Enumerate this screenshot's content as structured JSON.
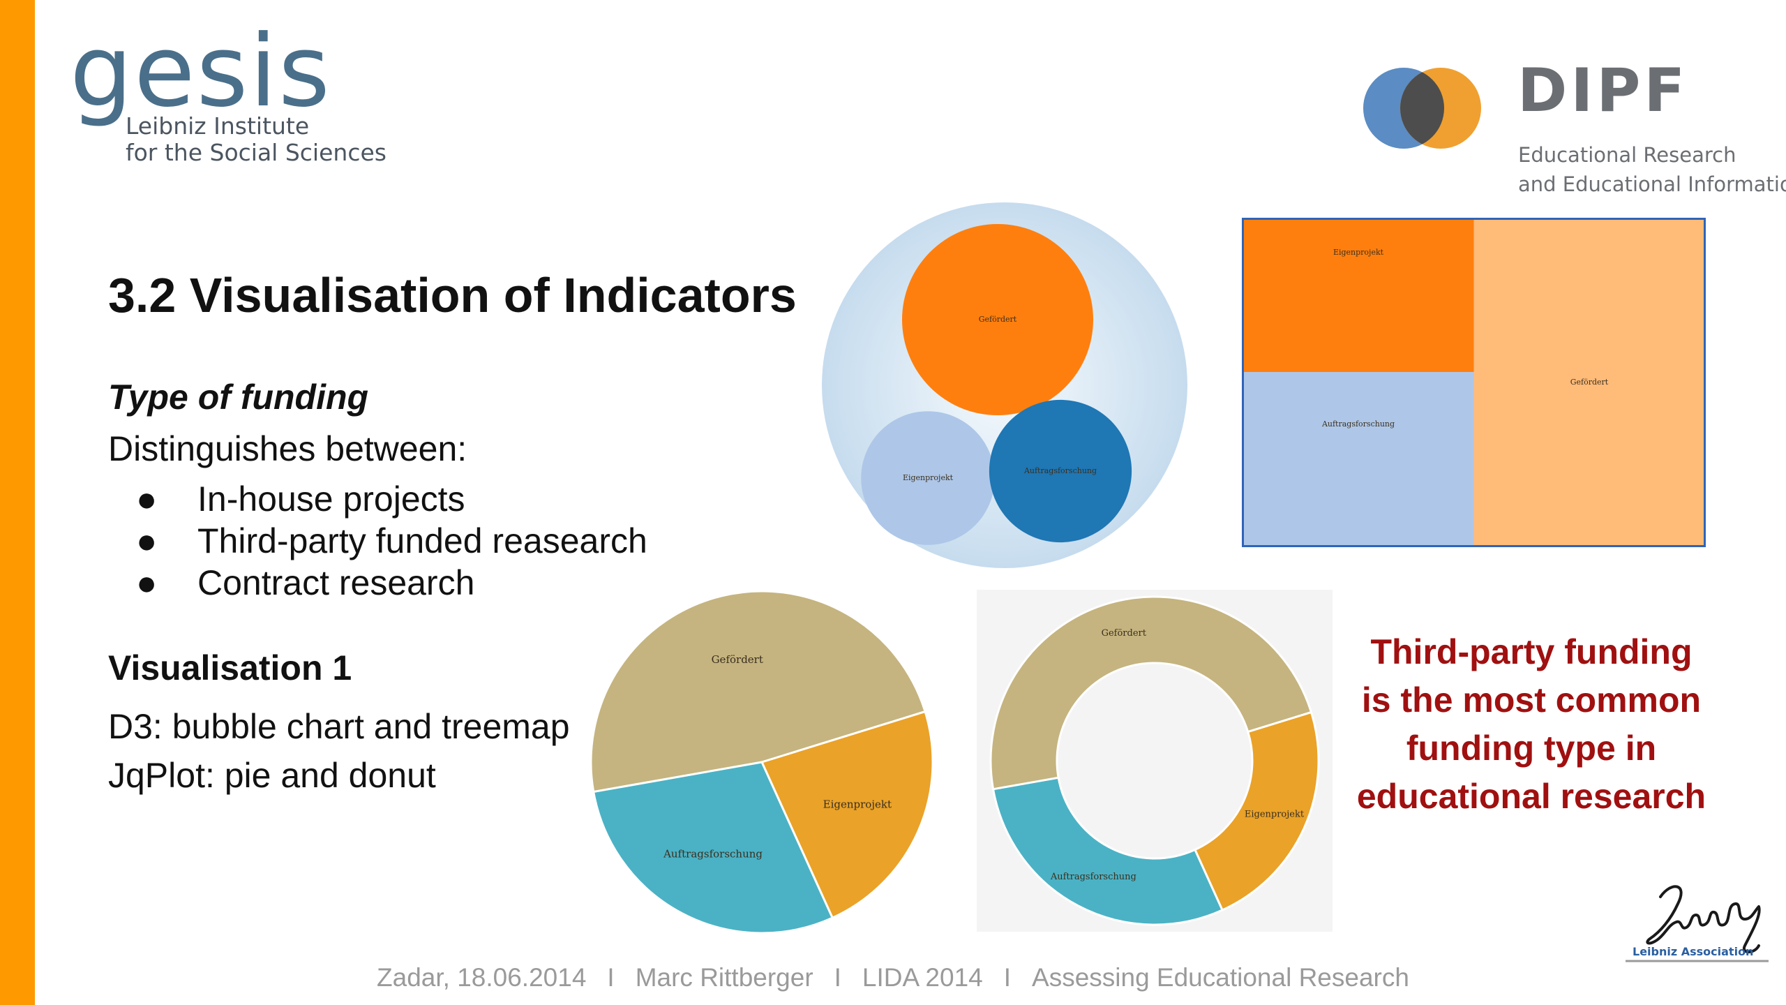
{
  "theme": {
    "accent_bar": "#FF9900",
    "orange": "#FF7F0E",
    "light_orange": "#FFBB78",
    "blue": "#1F77B4",
    "light_blue": "#AEC7E8",
    "pie_khaki": "#C5B47F",
    "pie_orange": "#EAA228",
    "pie_teal": "#4BB2C5",
    "conclusion_red": "#A01010"
  },
  "logos": {
    "gesis": {
      "word": "gesis",
      "line1": "Leibniz Institute",
      "line2": "for the Social Sciences",
      "color": "#4A6F8A"
    },
    "dipf": {
      "word": "DIPF",
      "line1": "Educational Research",
      "line2": "and Educational Information"
    },
    "leibniz": {
      "caption": "Leibniz Association",
      "signature_text": "Leibniz"
    }
  },
  "slide": {
    "title": "3.2 Visualisation of Indicators",
    "section_heading": "Type of funding",
    "intro": "Distinguishes between:",
    "bullets": [
      {
        "marker": "●",
        "text": "In-house projects"
      },
      {
        "marker": "●",
        "text": "Third-party funded reasearch"
      },
      {
        "marker": "●",
        "text": "Contract research"
      }
    ],
    "vis_heading": "Visualisation 1",
    "tool_lines": [
      "D3: bubble chart and treemap",
      "JqPlot: pie and donut"
    ],
    "conclusion_lines": [
      "Third-party funding",
      "is the most common",
      "funding type in",
      "educational research"
    ]
  },
  "chart_data": [
    {
      "type": "bubble",
      "categories": [
        "Gefördert",
        "Eigenprojekt",
        "Auftragsforschung"
      ],
      "values": [
        45,
        22,
        25
      ],
      "colors": [
        "#FF7F0E",
        "#AEC7E8",
        "#1F77B4"
      ]
    },
    {
      "type": "treemap",
      "categories": [
        "Eigenprojekt",
        "Auftragsforschung",
        "Gefördert"
      ],
      "values": [
        22,
        25,
        47
      ],
      "colors": [
        "#FF7F0E",
        "#AEC7E8",
        "#FFBB78"
      ]
    },
    {
      "type": "pie",
      "categories": [
        "Gefördert",
        "Eigenprojekt",
        "Auftragsforschung"
      ],
      "values": [
        48,
        23,
        29
      ],
      "colors": [
        "#C5B47F",
        "#EAA228",
        "#4BB2C5"
      ]
    },
    {
      "type": "donut",
      "categories": [
        "Gefördert",
        "Eigenprojekt",
        "Auftragsforschung"
      ],
      "values": [
        48,
        23,
        29
      ],
      "colors": [
        "#C5B47F",
        "#EAA228",
        "#4BB2C5"
      ]
    }
  ],
  "footer": {
    "items": [
      "Zadar, 18.06.2014",
      "Marc Rittberger",
      "LIDA 2014",
      "Assessing Educational Research"
    ],
    "separator": "I"
  }
}
